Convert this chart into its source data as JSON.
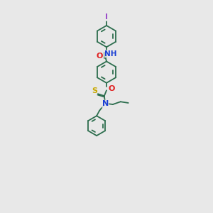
{
  "background_color": "#e8e8e8",
  "bond_color": "#2d6e4e",
  "atom_colors": {
    "I": "#9b4dca",
    "O": "#e02020",
    "N": "#1a3fd4",
    "S": "#c8a800",
    "C": "#2d6e4e"
  },
  "figsize": [
    3.0,
    3.0
  ],
  "dpi": 100,
  "lw": 1.3,
  "ring_r": 0.55,
  "inner_r": 0.42
}
